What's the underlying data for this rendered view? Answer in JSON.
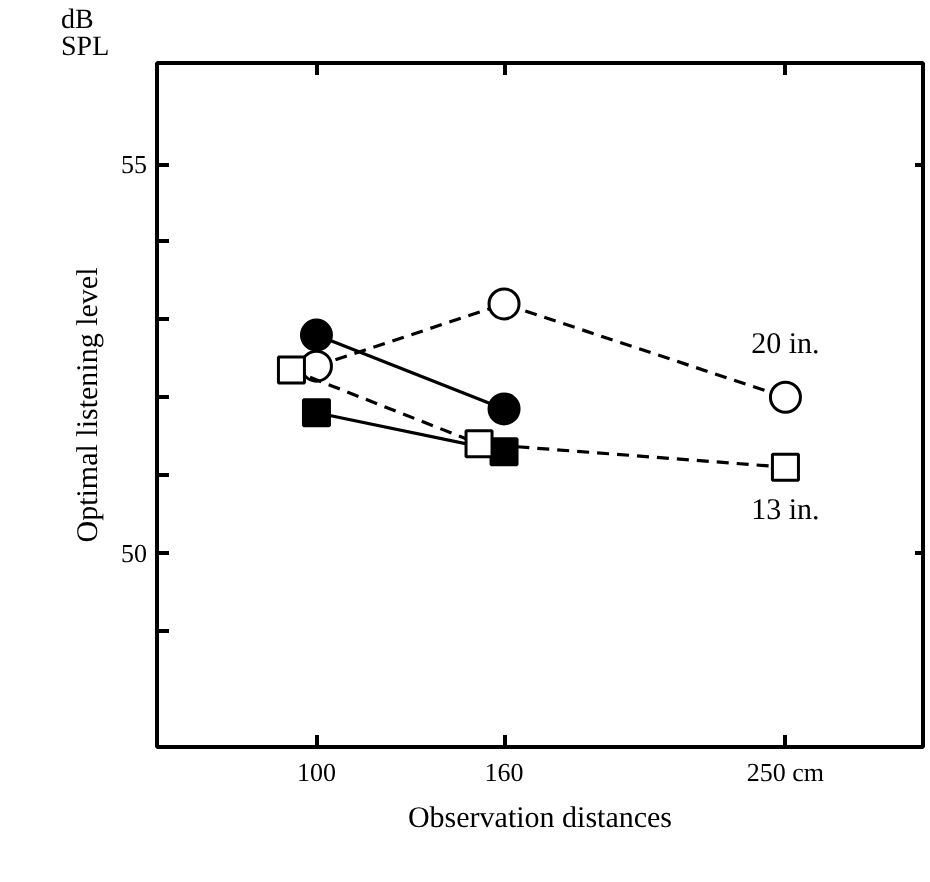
{
  "chart_data": {
    "type": "line",
    "xlabel": "Observation distances",
    "ylabel": "Optimal listening level",
    "annotations": [
      "dB\nSPL"
    ],
    "xlim": [
      49,
      294
    ],
    "xticks": [
      100,
      160,
      {
        "value": 250,
        "label": "250 cm"
      }
    ],
    "ylim": [
      47.5,
      56.3
    ],
    "yticks": [
      {
        "value": 49,
        "label": null
      },
      50,
      {
        "value": 51,
        "label": null
      },
      {
        "value": 52,
        "label": null
      },
      {
        "value": 53,
        "label": null
      },
      {
        "value": 54,
        "label": null
      },
      55
    ],
    "grid": false,
    "series": [
      {
        "x": [
          100,
          160
        ],
        "values": [
          52.8,
          51.85
        ],
        "color": "#000000",
        "marker": "circle",
        "line_style": "solid"
      },
      {
        "x": [
          100,
          160
        ],
        "values": [
          51.8,
          51.3
        ],
        "color": "#000000",
        "marker": "square",
        "line_style": "solid"
      },
      {
        "name": "20 in.",
        "x": [
          100,
          160,
          250
        ],
        "values": [
          52.4,
          53.2,
          52.0
        ],
        "color": "#ffffff",
        "marker": "circle",
        "line_style": "dashed"
      },
      {
        "name": "13 in.",
        "x": [
          92,
          152,
          250
        ],
        "values": [
          52.35,
          51.4,
          51.1
        ],
        "color": "#ffffff",
        "marker": "square",
        "line_style": "dashed"
      }
    ]
  }
}
